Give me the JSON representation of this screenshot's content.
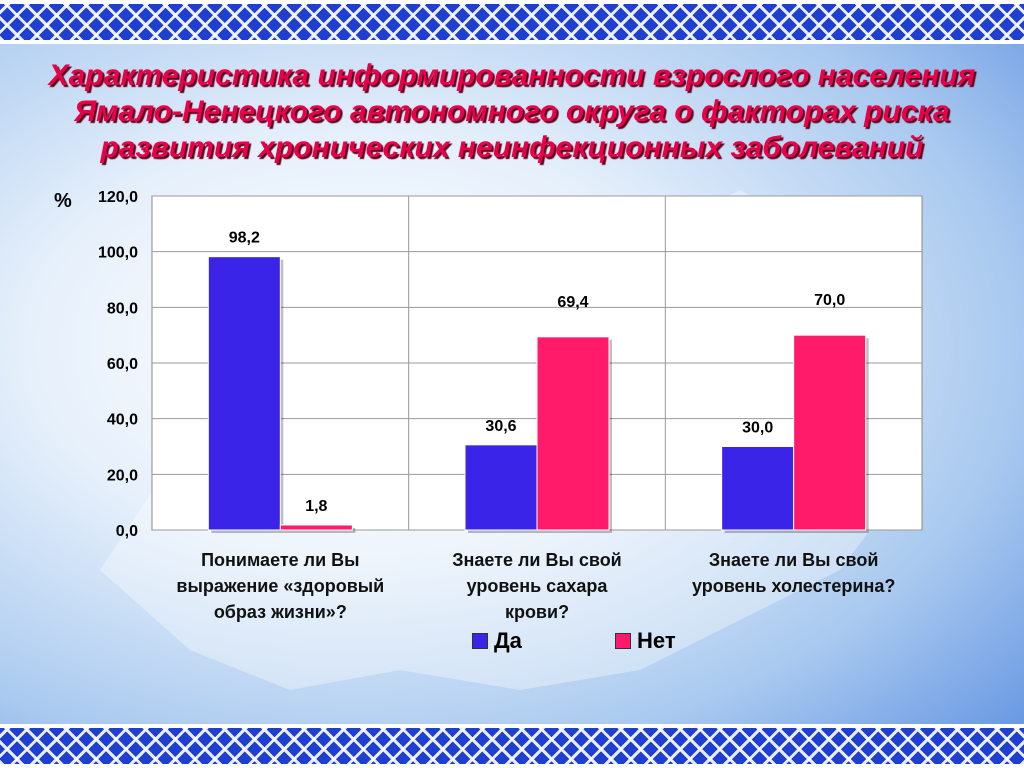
{
  "title": "Характеристика информированности взрослого населения Ямало-Ненецкого автономного округа  о  факторах риска развития хронических неинфекционных заболеваний",
  "colors": {
    "da": "#3a24e8",
    "net": "#ff1a6a",
    "title": "#e8004a"
  },
  "chart_data": {
    "type": "bar",
    "title": "Характеристика информированности взрослого населения Ямало-Ненецкого автономного округа  о  факторах риска развития хронических неинфекционных заболеваний",
    "ylabel": "%",
    "xlabel": "",
    "ylim": [
      0,
      120
    ],
    "yticks": [
      "0,0",
      "20,0",
      "40,0",
      "60,0",
      "80,0",
      "100,0",
      "120,0"
    ],
    "grid": true,
    "legend": "bottom",
    "categories": [
      [
        "Понимаете ли Вы",
        "выражение «здоровый",
        "образ жизни»?"
      ],
      [
        "Знаете ли Вы свой",
        "уровень сахара",
        "крови?"
      ],
      [
        "Знаете ли Вы свой",
        "уровень холестерина?"
      ]
    ],
    "series": [
      {
        "name": "Да",
        "values": [
          98.2,
          30.6,
          30.0
        ],
        "labels": [
          "98,2",
          "30,6",
          "30,0"
        ]
      },
      {
        "name": "Нет",
        "values": [
          1.8,
          69.4,
          70.0
        ],
        "labels": [
          "1,8",
          "69,4",
          "70,0"
        ]
      }
    ]
  }
}
